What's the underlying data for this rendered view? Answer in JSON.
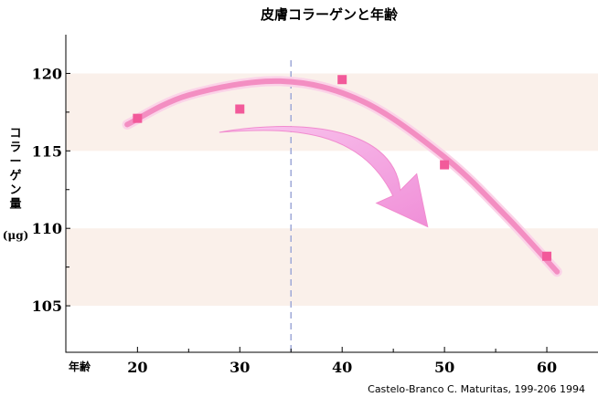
{
  "chart_data": {
    "type": "scatter",
    "title": "皮膚コラーゲンと年齢",
    "xlabel": "年齢",
    "ylabel": "コラーゲン量",
    "ylabel_unit": "(μg)",
    "x_ticks": [
      "20",
      "30",
      "40",
      "50",
      "60"
    ],
    "y_ticks": [
      "105",
      "110",
      "115",
      "120"
    ],
    "xlim": [
      13,
      65
    ],
    "ylim": [
      102,
      122.5
    ],
    "bands": [
      [
        115,
        120
      ],
      [
        105,
        110
      ]
    ],
    "reference_x": 35,
    "points": [
      {
        "x": 20,
        "y": 117.1
      },
      {
        "x": 30,
        "y": 117.7
      },
      {
        "x": 40,
        "y": 119.6
      },
      {
        "x": 50,
        "y": 114.1
      },
      {
        "x": 60,
        "y": 108.2
      }
    ],
    "trend_curve": [
      {
        "x": 19,
        "y": 116.7
      },
      {
        "x": 25,
        "y": 118.6
      },
      {
        "x": 34,
        "y": 119.5
      },
      {
        "x": 42,
        "y": 118.2
      },
      {
        "x": 50,
        "y": 114.6
      },
      {
        "x": 56,
        "y": 110.8
      },
      {
        "x": 61,
        "y": 107.2
      }
    ],
    "decline_arrow": {
      "from_x": 28,
      "to_x": 48
    },
    "colors": {
      "band": "#faf0ea",
      "marker": "#f25a9a",
      "curve": "#f38ec2",
      "arrow": "#f5a9e0",
      "reference_line": "#9ea9d8"
    },
    "citation": "Castelo-Branco C. Maturitas, 199-206 1994"
  }
}
